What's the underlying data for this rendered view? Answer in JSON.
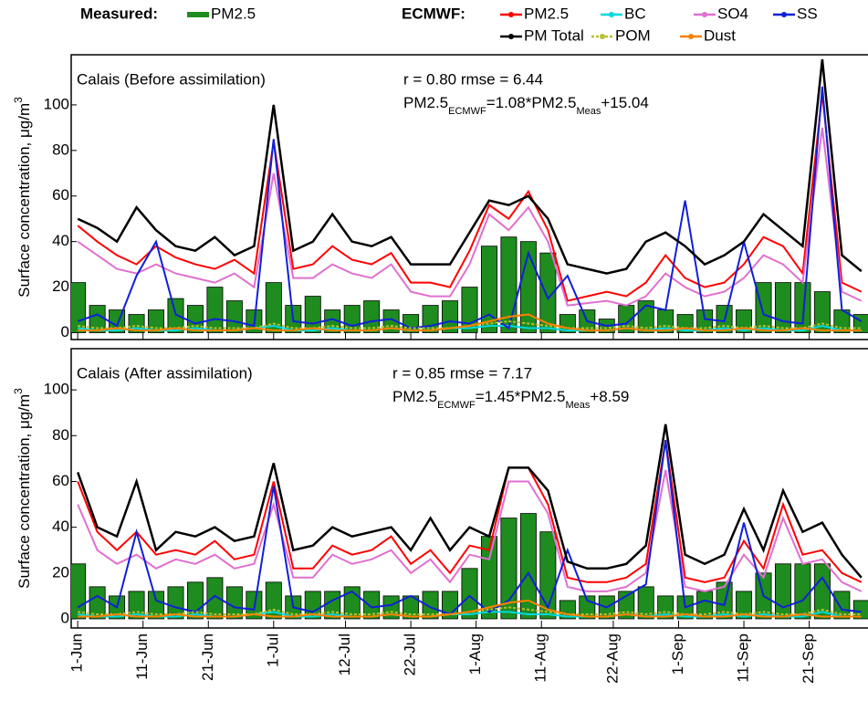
{
  "chart_data": [
    {
      "type": "combo",
      "legend_group_titles": [
        "Measured:",
        "ECMWF:"
      ],
      "title": "Calais (Before assimilation)",
      "stats": "r = 0.80   rmse = 6.44",
      "equation": [
        "PM2.5",
        "ECMWF",
        "=1.08*PM2.5",
        "Meas",
        "+15.04"
      ],
      "y_label": "Surface concentration, μg/m",
      "y_label_sup": "3",
      "x": [
        0,
        3,
        6,
        9,
        12,
        15,
        18,
        21,
        24,
        27,
        30,
        33,
        36,
        39,
        42,
        45,
        48,
        51,
        54,
        57,
        60,
        63,
        66,
        69,
        72,
        75,
        78,
        81,
        84,
        87,
        90,
        93,
        96,
        99,
        102,
        105,
        108,
        111,
        114,
        117,
        120
      ],
      "xlim": [
        -1,
        121
      ],
      "xticks": [
        0,
        10,
        20,
        30,
        41,
        51,
        61,
        71,
        82,
        92,
        102,
        112
      ],
      "ylim": [
        -3,
        122
      ],
      "yticks": [
        0,
        20,
        40,
        60,
        80,
        100
      ],
      "series": [
        {
          "name": "PM2.5",
          "style": "bar",
          "color": "#1e8c1e",
          "values": [
            22,
            12,
            10,
            8,
            10,
            15,
            12,
            20,
            14,
            10,
            22,
            12,
            16,
            10,
            12,
            14,
            10,
            8,
            12,
            14,
            20,
            38,
            42,
            40,
            35,
            8,
            10,
            6,
            12,
            14,
            10,
            8,
            10,
            12,
            10,
            22,
            22,
            22,
            18,
            10,
            8
          ]
        },
        {
          "name": "PM2.5",
          "style": "line",
          "color": "#ff0000",
          "values": [
            47,
            40,
            34,
            30,
            38,
            33,
            30,
            28,
            32,
            26,
            84,
            28,
            30,
            38,
            32,
            30,
            35,
            22,
            22,
            20,
            36,
            56,
            50,
            62,
            45,
            14,
            16,
            18,
            16,
            22,
            34,
            24,
            20,
            22,
            30,
            42,
            38,
            26,
            105,
            22,
            18
          ]
        },
        {
          "name": "BC",
          "style": "line",
          "color": "#00d8e0",
          "values": [
            2,
            1,
            1,
            2,
            1,
            1,
            2,
            1,
            1,
            2,
            3,
            1,
            1,
            2,
            1,
            1,
            2,
            1,
            1,
            2,
            2,
            3,
            3,
            2,
            2,
            1,
            1,
            1,
            2,
            1,
            2,
            1,
            1,
            2,
            1,
            2,
            1,
            1,
            3,
            1,
            1
          ]
        },
        {
          "name": "SO4",
          "style": "line",
          "color": "#e070d0",
          "values": [
            40,
            34,
            28,
            26,
            30,
            26,
            24,
            22,
            26,
            20,
            70,
            24,
            24,
            30,
            26,
            24,
            30,
            18,
            16,
            16,
            30,
            52,
            45,
            55,
            40,
            12,
            13,
            14,
            12,
            16,
            26,
            20,
            16,
            18,
            24,
            34,
            30,
            22,
            90,
            18,
            14
          ]
        },
        {
          "name": "SS",
          "style": "line",
          "color": "#1020d8",
          "values": [
            5,
            8,
            3,
            25,
            40,
            8,
            4,
            6,
            5,
            3,
            85,
            5,
            4,
            6,
            3,
            5,
            6,
            2,
            3,
            5,
            4,
            8,
            2,
            35,
            15,
            25,
            5,
            3,
            4,
            12,
            10,
            58,
            6,
            5,
            40,
            8,
            5,
            4,
            108,
            10,
            5
          ]
        },
        {
          "name": "PM Total",
          "style": "line",
          "color": "#000000",
          "values": [
            50,
            46,
            40,
            55,
            45,
            38,
            36,
            42,
            34,
            38,
            100,
            36,
            40,
            52,
            40,
            38,
            42,
            30,
            30,
            30,
            44,
            58,
            56,
            60,
            50,
            30,
            28,
            26,
            28,
            40,
            44,
            38,
            30,
            34,
            40,
            52,
            45,
            38,
            120,
            34,
            27
          ]
        },
        {
          "name": "POM",
          "style": "line",
          "dash": true,
          "color": "#b8c030",
          "values": [
            3,
            2,
            2,
            3,
            2,
            2,
            3,
            2,
            2,
            2,
            4,
            2,
            2,
            3,
            2,
            2,
            3,
            2,
            2,
            2,
            3,
            4,
            5,
            4,
            3,
            2,
            2,
            2,
            3,
            2,
            3,
            2,
            2,
            3,
            2,
            3,
            2,
            2,
            4,
            2,
            2
          ]
        },
        {
          "name": "Dust",
          "style": "line",
          "color": "#ff8000",
          "values": [
            1,
            1,
            2,
            1,
            1,
            2,
            1,
            1,
            1,
            2,
            1,
            1,
            2,
            1,
            1,
            1,
            2,
            1,
            1,
            2,
            3,
            5,
            7,
            8,
            4,
            2,
            1,
            1,
            2,
            1,
            1,
            2,
            1,
            1,
            2,
            1,
            1,
            2,
            1,
            1,
            1
          ]
        }
      ]
    },
    {
      "type": "combo",
      "title": "Calais (After assimilation)",
      "stats": "r = 0.85   rmse = 7.17",
      "equation": [
        "PM2.5",
        "ECMWF",
        "=1.45*PM2.5",
        "Meas",
        "+8.59"
      ],
      "y_label": "Surface concentration, μg/m",
      "y_label_sup": "3",
      "x": [
        0,
        3,
        6,
        9,
        12,
        15,
        18,
        21,
        24,
        27,
        30,
        33,
        36,
        39,
        42,
        45,
        48,
        51,
        54,
        57,
        60,
        63,
        66,
        69,
        72,
        75,
        78,
        81,
        84,
        87,
        90,
        93,
        96,
        99,
        102,
        105,
        108,
        111,
        114,
        117,
        120
      ],
      "xlim": [
        -1,
        121
      ],
      "xticks": [
        {
          "value": 0,
          "label": "1-Jun"
        },
        {
          "value": 10,
          "label": "11-Jun"
        },
        {
          "value": 20,
          "label": "21-Jun"
        },
        {
          "value": 30,
          "label": "1-Jul"
        },
        {
          "value": 41,
          "label": "12-Jul"
        },
        {
          "value": 51,
          "label": "22-Jul"
        },
        {
          "value": 61,
          "label": "1-Aug"
        },
        {
          "value": 71,
          "label": "11-Aug"
        },
        {
          "value": 82,
          "label": "22-Aug"
        },
        {
          "value": 92,
          "label": "1-Sep"
        },
        {
          "value": 102,
          "label": "11-Sep"
        },
        {
          "value": 112,
          "label": "21-Sep"
        }
      ],
      "ylim": [
        -4,
        118
      ],
      "yticks": [
        0,
        20,
        40,
        60,
        80,
        100
      ],
      "series": [
        {
          "style": "bar",
          "color": "#1e8c1e",
          "values": [
            24,
            14,
            10,
            12,
            12,
            14,
            16,
            18,
            14,
            12,
            16,
            10,
            12,
            12,
            14,
            12,
            10,
            10,
            12,
            12,
            22,
            36,
            44,
            46,
            38,
            8,
            10,
            10,
            12,
            14,
            10,
            10,
            12,
            16,
            12,
            20,
            24,
            24,
            24,
            12,
            8
          ]
        },
        {
          "style": "line",
          "color": "#ff0000",
          "values": [
            60,
            38,
            30,
            38,
            28,
            30,
            28,
            34,
            26,
            28,
            60,
            22,
            22,
            32,
            28,
            30,
            36,
            24,
            30,
            20,
            32,
            30,
            66,
            66,
            50,
            18,
            16,
            16,
            18,
            24,
            78,
            18,
            16,
            18,
            34,
            22,
            50,
            28,
            30,
            20,
            16
          ]
        },
        {
          "style": "line",
          "color": "#00d8e0",
          "values": [
            2,
            1,
            1,
            2,
            1,
            1,
            2,
            1,
            1,
            2,
            3,
            1,
            1,
            2,
            1,
            1,
            2,
            1,
            1,
            2,
            2,
            3,
            3,
            2,
            2,
            1,
            1,
            1,
            2,
            1,
            2,
            1,
            1,
            2,
            1,
            2,
            1,
            1,
            3,
            1,
            1
          ]
        },
        {
          "style": "line",
          "color": "#e070d0",
          "values": [
            50,
            30,
            24,
            28,
            22,
            26,
            24,
            28,
            22,
            24,
            50,
            18,
            18,
            28,
            24,
            26,
            30,
            20,
            26,
            16,
            28,
            26,
            60,
            60,
            46,
            14,
            12,
            12,
            14,
            20,
            65,
            14,
            12,
            14,
            28,
            18,
            44,
            24,
            26,
            16,
            12
          ]
        },
        {
          "style": "line",
          "color": "#1020d8",
          "values": [
            5,
            10,
            5,
            38,
            8,
            5,
            3,
            10,
            5,
            4,
            58,
            5,
            3,
            8,
            12,
            5,
            6,
            10,
            5,
            2,
            10,
            3,
            8,
            20,
            5,
            30,
            8,
            5,
            10,
            15,
            78,
            5,
            8,
            6,
            42,
            10,
            5,
            8,
            18,
            4,
            3
          ]
        },
        {
          "style": "line",
          "color": "#000000",
          "values": [
            64,
            40,
            36,
            60,
            30,
            38,
            36,
            40,
            34,
            36,
            68,
            30,
            32,
            40,
            36,
            38,
            40,
            30,
            44,
            30,
            40,
            36,
            66,
            66,
            56,
            25,
            22,
            22,
            24,
            32,
            85,
            28,
            24,
            28,
            48,
            30,
            56,
            38,
            42,
            28,
            18
          ]
        },
        {
          "style": "line",
          "dash": true,
          "color": "#b8c030",
          "values": [
            3,
            2,
            2,
            3,
            2,
            2,
            3,
            2,
            2,
            2,
            4,
            2,
            2,
            3,
            2,
            2,
            3,
            2,
            2,
            2,
            3,
            4,
            5,
            4,
            3,
            2,
            2,
            2,
            3,
            2,
            3,
            2,
            2,
            3,
            2,
            3,
            2,
            2,
            4,
            2,
            2
          ]
        },
        {
          "style": "line",
          "color": "#ff8000",
          "values": [
            1,
            1,
            2,
            1,
            1,
            2,
            1,
            1,
            1,
            2,
            1,
            1,
            2,
            1,
            1,
            1,
            2,
            1,
            1,
            2,
            3,
            5,
            7,
            8,
            4,
            2,
            1,
            1,
            2,
            1,
            1,
            2,
            1,
            1,
            2,
            1,
            1,
            2,
            1,
            1,
            1
          ]
        }
      ]
    }
  ]
}
